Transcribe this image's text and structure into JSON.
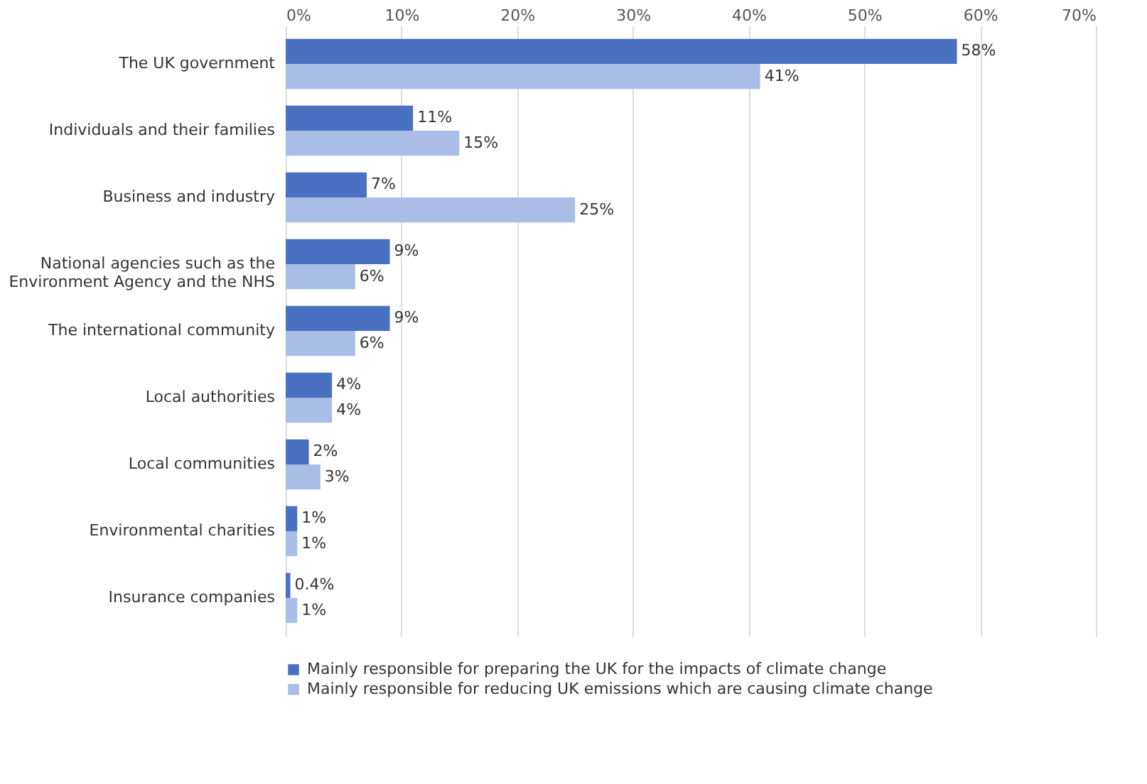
{
  "chart_data": {
    "type": "bar",
    "orientation": "horizontal",
    "categories": [
      "The UK government",
      "Individuals and their families",
      "Business and industry",
      "National agencies such as the\nEnvironment Agency and the NHS",
      "The international community",
      "Local authorities",
      "Local communities",
      "Environmental charities",
      "Insurance companies"
    ],
    "series": [
      {
        "name": "Mainly responsible for preparing the UK for the impacts of climate change",
        "color": "#4a70c2",
        "values": [
          58,
          11,
          7,
          9,
          9,
          4,
          2,
          1,
          0.4
        ],
        "value_labels": [
          "58%",
          "11%",
          "7%",
          "9%",
          "9%",
          "4%",
          "2%",
          "1%",
          "0.4%"
        ]
      },
      {
        "name": "Mainly responsible for reducing UK emissions which are causing climate change",
        "color": "#aabde6",
        "values": [
          41,
          15,
          25,
          6,
          6,
          4,
          3,
          1,
          1
        ],
        "value_labels": [
          "41%",
          "15%",
          "25%",
          "6%",
          "6%",
          "4%",
          "3%",
          "1%",
          "1%"
        ]
      }
    ],
    "xlim": [
      0,
      70
    ],
    "xticks": [
      {
        "value": 0,
        "label": "0%"
      },
      {
        "value": 10,
        "label": "10%"
      },
      {
        "value": 20,
        "label": "20%"
      },
      {
        "value": 30,
        "label": "30%"
      },
      {
        "value": 40,
        "label": "40%"
      },
      {
        "value": 50,
        "label": "50%"
      },
      {
        "value": 60,
        "label": "60%"
      },
      {
        "value": 70,
        "label": "70%"
      }
    ],
    "grid": "x",
    "legend": "bottom"
  }
}
